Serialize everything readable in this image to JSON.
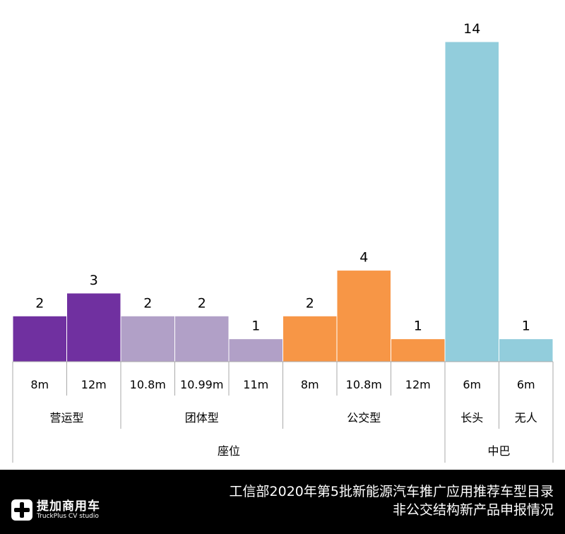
{
  "chart_data": {
    "type": "bar",
    "categories": [
      {
        "level1": "8m",
        "level2": "营运型",
        "level3": "座位"
      },
      {
        "level1": "12m",
        "level2": "营运型",
        "level3": "座位"
      },
      {
        "level1": "10.8m",
        "level2": "团体型",
        "level3": "座位"
      },
      {
        "level1": "10.99m",
        "level2": "团体型",
        "level3": "座位"
      },
      {
        "level1": "11m",
        "level2": "团体型",
        "level3": "座位"
      },
      {
        "level1": "8m",
        "level2": "公交型",
        "level3": "座位"
      },
      {
        "level1": "10.8m",
        "level2": "公交型",
        "level3": "座位"
      },
      {
        "level1": "12m",
        "level2": "公交型",
        "level3": "座位"
      },
      {
        "level1": "6m",
        "level2": "长头",
        "level3": "中巴"
      },
      {
        "level1": "6m",
        "level2": "无人",
        "level3": "中巴"
      }
    ],
    "values": [
      2,
      3,
      2,
      2,
      1,
      2,
      4,
      1,
      14,
      1
    ],
    "colors": [
      "#7030A0",
      "#7030A0",
      "#B1A0C7",
      "#B1A0C7",
      "#B1A0C7",
      "#F79646",
      "#F79646",
      "#F79646",
      "#92CDDC",
      "#92CDDC"
    ],
    "data_labels": true,
    "grid": false,
    "ylim": [
      0,
      14
    ]
  },
  "banner": {
    "logo_cn": "提加商用车",
    "logo_en": "TruckPlus CV studio",
    "title_line1": "工信部2020年第5批新能源汽车推广应用推荐车型目录",
    "title_line2": "非公交结构新产品申报情况"
  }
}
